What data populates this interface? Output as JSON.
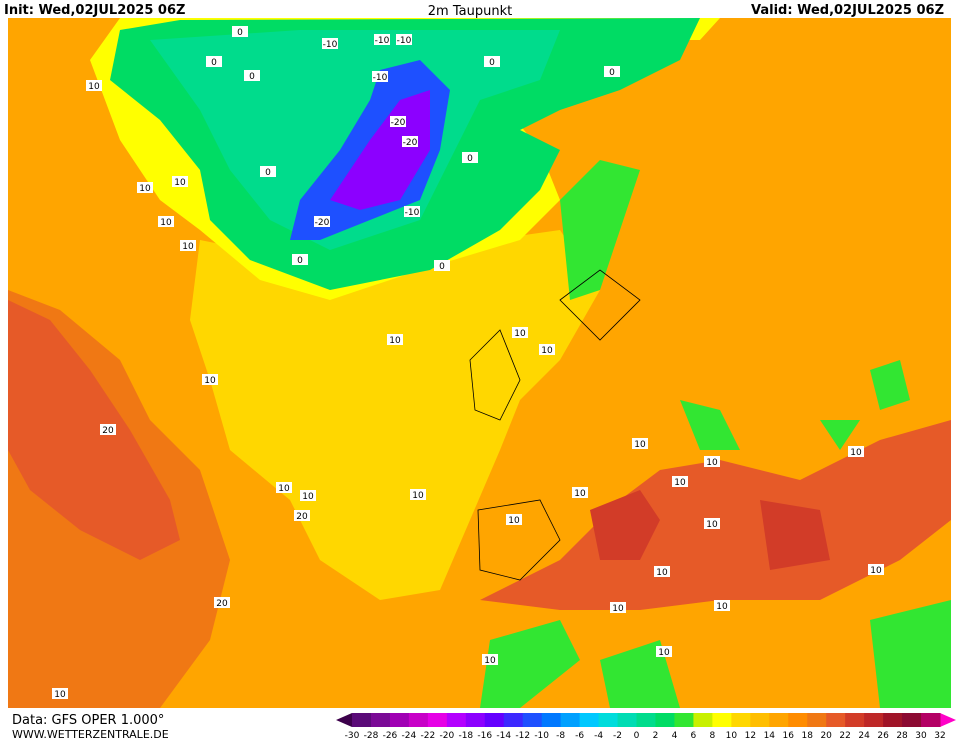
{
  "header": {
    "init": "Init: Wed,02JUL2025 06Z",
    "title": "2m Taupunkt",
    "valid": "Valid: Wed,02JUL2025 06Z"
  },
  "footer": {
    "data": "Data: GFS OPER 1.000°",
    "website": "WWW.WETTERZENTRALE.DE"
  },
  "colorbar": {
    "ticks": [
      -30,
      -28,
      -26,
      -24,
      -22,
      -20,
      -18,
      -16,
      -14,
      -12,
      -10,
      -8,
      -6,
      -4,
      -2,
      0,
      2,
      4,
      6,
      8,
      10,
      12,
      14,
      16,
      18,
      20,
      22,
      24,
      26,
      28,
      30,
      32
    ],
    "colors": [
      "#5a0a78",
      "#7a0a96",
      "#a000b4",
      "#c800c8",
      "#e600e6",
      "#b400ff",
      "#8c00ff",
      "#6400ff",
      "#3c28ff",
      "#1e50ff",
      "#0078ff",
      "#00a0ff",
      "#00c8ff",
      "#00dcdc",
      "#00dcb4",
      "#00dc8c",
      "#00dc64",
      "#32e632",
      "#c8f000",
      "#ffff00",
      "#ffd700",
      "#ffbe00",
      "#ffa500",
      "#ff8c00",
      "#f07814",
      "#e65a28",
      "#d23c28",
      "#be2828",
      "#a01428",
      "#8c0a32",
      "#b40064"
    ],
    "under_color": "#3c004b",
    "over_color": "#ff00c8"
  },
  "contour_labels": [
    "-10",
    "-10",
    "-10",
    "-10",
    "-20",
    "-20",
    "-10",
    "-20",
    "0",
    "0",
    "0",
    "0",
    "0",
    "0",
    "0",
    "0",
    "0",
    "10",
    "10",
    "10",
    "10",
    "10",
    "20",
    "10",
    "10",
    "10",
    "10",
    "10",
    "10",
    "20",
    "20",
    "10",
    "10",
    "10",
    "10",
    "10",
    "10",
    "10",
    "10",
    "10",
    "10",
    "10",
    "10",
    "10",
    "10",
    "10"
  ]
}
